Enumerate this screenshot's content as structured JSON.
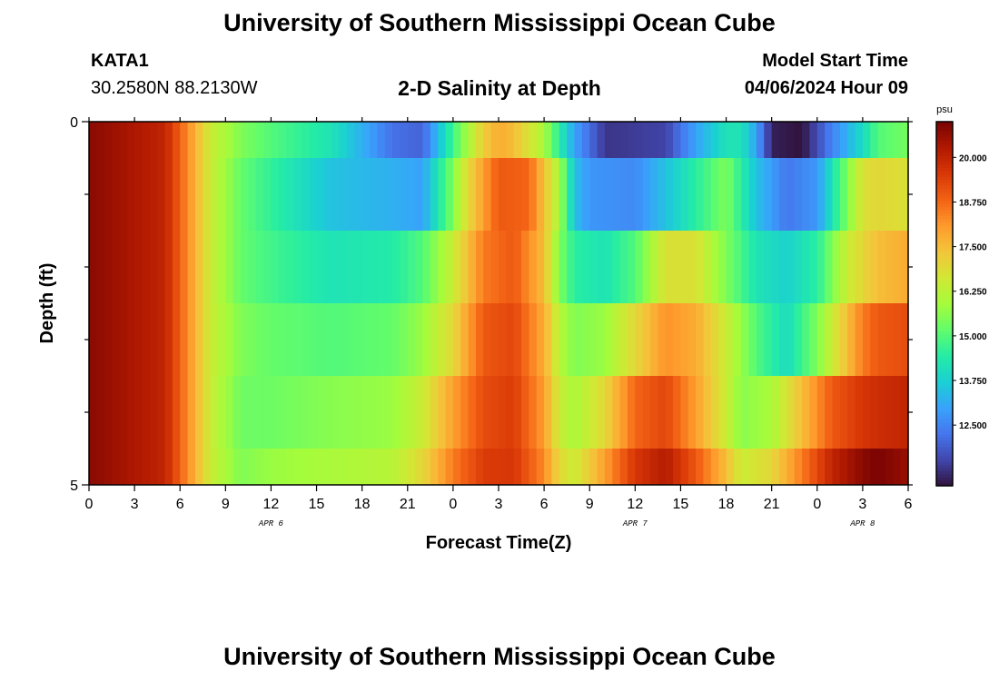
{
  "header": {
    "title": "University of Southern Mississippi Ocean Cube",
    "station": "KATA1",
    "coords": "30.2580N  88.2130W",
    "subtitle": "2-D Salinity at Depth",
    "start_label": "Model Start Time",
    "start_value": "04/06/2024 Hour 09"
  },
  "footer": {
    "title": "University of Southern Mississippi Ocean Cube"
  },
  "chart_data": {
    "type": "heatmap",
    "title": "2-D Salinity at Depth",
    "xlabel": "Forecast Time(Z)",
    "ylabel": "Depth (ft)",
    "x_tick_labels": [
      "0",
      "3",
      "6",
      "9",
      "12",
      "15",
      "18",
      "21",
      "0",
      "3",
      "6",
      "9",
      "12",
      "15",
      "18",
      "21",
      "0",
      "3",
      "6"
    ],
    "x_date_labels": [
      {
        "label": "APR 6",
        "hour": 12
      },
      {
        "label": "APR 7",
        "hour": 36
      },
      {
        "label": "APR 8",
        "hour": 51
      }
    ],
    "x_range": [
      0,
      54
    ],
    "y_range": [
      0,
      5
    ],
    "y_tick_labels": [
      "0",
      "5"
    ],
    "depth_layers": [
      {
        "top": 0.0,
        "bottom": 0.5
      },
      {
        "top": 0.5,
        "bottom": 1.5
      },
      {
        "top": 1.5,
        "bottom": 2.5
      },
      {
        "top": 2.5,
        "bottom": 3.5
      },
      {
        "top": 3.5,
        "bottom": 4.5
      },
      {
        "top": 4.5,
        "bottom": 5.0
      }
    ],
    "layer_keyframes": [
      [
        [
          0,
          20.8
        ],
        [
          5,
          20.0
        ],
        [
          6.5,
          18.3
        ],
        [
          8,
          16.5
        ],
        [
          10,
          15.5
        ],
        [
          12,
          15.0
        ],
        [
          16,
          14.2
        ],
        [
          20,
          12.2
        ],
        [
          22,
          12.0
        ],
        [
          24,
          14.8
        ],
        [
          26,
          17.2
        ],
        [
          27,
          17.8
        ],
        [
          28,
          17.5
        ],
        [
          30,
          16.0
        ],
        [
          32,
          13.0
        ],
        [
          34,
          11.3
        ],
        [
          38,
          11.5
        ],
        [
          40,
          13.0
        ],
        [
          42,
          14.2
        ],
        [
          43,
          14.2
        ],
        [
          44,
          13.0
        ],
        [
          45,
          11.0
        ],
        [
          47,
          10.8
        ],
        [
          49,
          12.5
        ],
        [
          51,
          14.0
        ],
        [
          52,
          15.0
        ],
        [
          54,
          15.4
        ]
      ],
      [
        [
          0,
          20.8
        ],
        [
          5,
          20.0
        ],
        [
          6.5,
          18.3
        ],
        [
          8,
          16.5
        ],
        [
          10,
          15.2
        ],
        [
          12,
          14.6
        ],
        [
          16,
          13.5
        ],
        [
          20,
          13.2
        ],
        [
          22,
          13.0
        ],
        [
          24,
          15.5
        ],
        [
          25,
          17.0
        ],
        [
          27,
          19.0
        ],
        [
          29,
          18.8
        ],
        [
          31,
          16.0
        ],
        [
          32,
          13.5
        ],
        [
          33,
          12.8
        ],
        [
          36,
          12.6
        ],
        [
          38,
          13.5
        ],
        [
          40,
          14.5
        ],
        [
          42,
          15.5
        ],
        [
          44,
          13.5
        ],
        [
          46,
          12.3
        ],
        [
          48,
          12.8
        ],
        [
          49,
          14.2
        ],
        [
          50,
          15.5
        ],
        [
          51,
          16.8
        ],
        [
          52,
          17.0
        ],
        [
          54,
          16.8
        ]
      ],
      [
        [
          0,
          20.8
        ],
        [
          5,
          20.0
        ],
        [
          6.5,
          18.3
        ],
        [
          8,
          16.5
        ],
        [
          10,
          15.2
        ],
        [
          12,
          14.8
        ],
        [
          16,
          14.2
        ],
        [
          20,
          14.4
        ],
        [
          22,
          15.0
        ],
        [
          24,
          16.5
        ],
        [
          26,
          18.5
        ],
        [
          28,
          19.0
        ],
        [
          30,
          17.5
        ],
        [
          31,
          15.5
        ],
        [
          32,
          14.5
        ],
        [
          34,
          14.2
        ],
        [
          36,
          15.0
        ],
        [
          38,
          16.8
        ],
        [
          40,
          16.8
        ],
        [
          42,
          15.5
        ],
        [
          44,
          14.2
        ],
        [
          46,
          13.8
        ],
        [
          48,
          14.5
        ],
        [
          50,
          16.5
        ],
        [
          51,
          17.0
        ],
        [
          52,
          17.5
        ],
        [
          54,
          17.8
        ]
      ],
      [
        [
          0,
          20.8
        ],
        [
          5,
          20.0
        ],
        [
          6.5,
          18.3
        ],
        [
          8,
          16.5
        ],
        [
          10,
          15.5
        ],
        [
          12,
          15.2
        ],
        [
          16,
          15.0
        ],
        [
          20,
          15.2
        ],
        [
          22,
          15.8
        ],
        [
          24,
          17.0
        ],
        [
          26,
          19.0
        ],
        [
          28,
          19.3
        ],
        [
          30,
          17.8
        ],
        [
          31,
          16.2
        ],
        [
          32,
          15.5
        ],
        [
          34,
          15.8
        ],
        [
          36,
          17.0
        ],
        [
          38,
          18.2
        ],
        [
          40,
          17.8
        ],
        [
          42,
          16.5
        ],
        [
          44,
          15.0
        ],
        [
          46,
          14.0
        ],
        [
          48,
          15.5
        ],
        [
          50,
          17.5
        ],
        [
          51,
          18.5
        ],
        [
          52,
          19.0
        ],
        [
          54,
          19.2
        ]
      ],
      [
        [
          0,
          20.8
        ],
        [
          5,
          20.0
        ],
        [
          6.5,
          18.3
        ],
        [
          8,
          16.5
        ],
        [
          10,
          15.3
        ],
        [
          12,
          15.3
        ],
        [
          16,
          15.6
        ],
        [
          20,
          15.8
        ],
        [
          22,
          16.5
        ],
        [
          24,
          18.0
        ],
        [
          26,
          19.2
        ],
        [
          28,
          19.5
        ],
        [
          30,
          18.0
        ],
        [
          31,
          16.5
        ],
        [
          32,
          16.0
        ],
        [
          34,
          17.0
        ],
        [
          36,
          18.8
        ],
        [
          38,
          19.3
        ],
        [
          40,
          18.0
        ],
        [
          42,
          16.5
        ],
        [
          43,
          15.6
        ],
        [
          45,
          16.0
        ],
        [
          47,
          17.5
        ],
        [
          49,
          19.0
        ],
        [
          51,
          19.6
        ],
        [
          52,
          19.8
        ],
        [
          54,
          20.0
        ]
      ],
      [
        [
          0,
          20.8
        ],
        [
          5,
          20.0
        ],
        [
          6.5,
          18.3
        ],
        [
          8,
          16.5
        ],
        [
          10,
          15.5
        ],
        [
          12,
          15.8
        ],
        [
          16,
          16.0
        ],
        [
          20,
          16.2
        ],
        [
          22,
          17.0
        ],
        [
          24,
          18.5
        ],
        [
          26,
          19.5
        ],
        [
          28,
          19.6
        ],
        [
          30,
          18.3
        ],
        [
          31,
          17.0
        ],
        [
          32,
          16.5
        ],
        [
          34,
          18.0
        ],
        [
          36,
          19.6
        ],
        [
          38,
          20.2
        ],
        [
          40,
          19.0
        ],
        [
          42,
          17.5
        ],
        [
          43,
          16.5
        ],
        [
          45,
          17.0
        ],
        [
          47,
          18.5
        ],
        [
          49,
          20.0
        ],
        [
          51,
          20.8
        ],
        [
          52,
          21.0
        ],
        [
          54,
          20.6
        ]
      ]
    ],
    "colorbar": {
      "unit": "psu",
      "min": 10.8,
      "max": 21.0,
      "ticks": [
        "12.500",
        "13.750",
        "15.000",
        "16.250",
        "17.500",
        "18.750",
        "20.000"
      ],
      "tick_values": [
        12.5,
        13.75,
        15.0,
        16.25,
        17.5,
        18.75,
        20.0
      ]
    },
    "colormap": [
      "#30123b",
      "#4145ab",
      "#4675ed",
      "#39a2fc",
      "#1bcfd4",
      "#24eca6",
      "#61fc6c",
      "#a4fc3b",
      "#d1e834",
      "#f3c63a",
      "#fe9b2d",
      "#f36315",
      "#d93807",
      "#b11901",
      "#7a0403"
    ],
    "grid": false
  }
}
